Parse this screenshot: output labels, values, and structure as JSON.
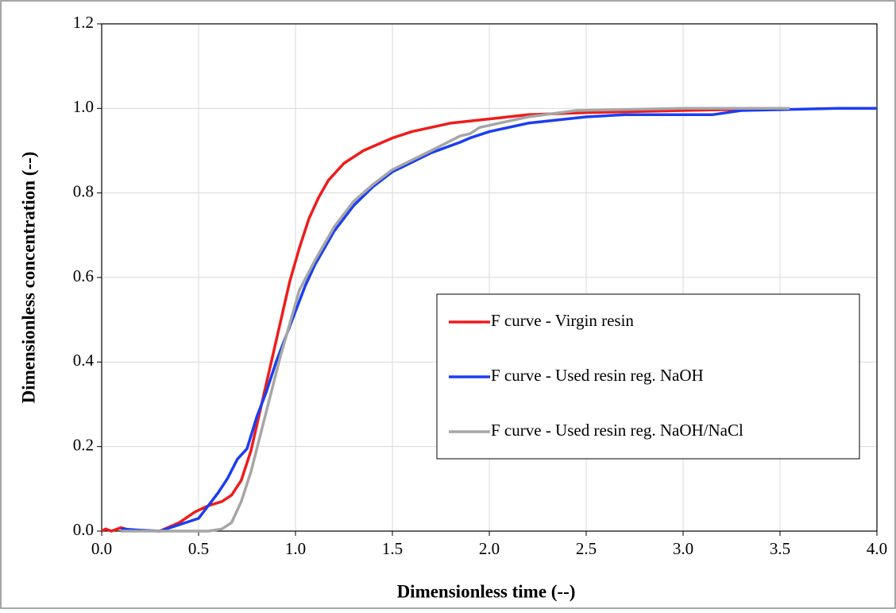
{
  "chart_data": {
    "type": "line",
    "xlabel": "Dimensionless time (--)",
    "ylabel": "Dimensionless concentration (--)",
    "xlim": [
      0,
      4
    ],
    "ylim": [
      0,
      1.2
    ],
    "xticks": [
      {
        "value": 0,
        "label": "0.0"
      },
      0.5,
      {
        "value": 1,
        "label": "1.0"
      },
      1.5,
      {
        "value": 2,
        "label": "2.0"
      },
      2.5,
      {
        "value": 3,
        "label": "3.0"
      },
      3.5,
      {
        "value": 4,
        "label": "4.0"
      }
    ],
    "yticks": [
      {
        "value": 0,
        "label": "0.0"
      },
      0.2,
      0.4,
      0.6,
      0.8,
      {
        "value": 1,
        "label": "1.0"
      },
      1.2
    ],
    "grid": true,
    "legend": "right",
    "series": [
      {
        "name": "F curve - Virgin resin",
        "color": "#ee1c1c",
        "x": [
          0,
          0.02,
          0.05,
          0.1,
          0.15,
          0.3,
          0.4,
          0.48,
          0.55,
          0.62,
          0.67,
          0.72,
          0.77,
          0.82,
          0.87,
          0.92,
          0.97,
          1.02,
          1.07,
          1.12,
          1.17,
          1.25,
          1.35,
          1.45,
          1.5,
          1.6,
          1.8,
          2.0,
          2.2,
          2.5,
          3.0,
          3.55
        ],
        "values": [
          0,
          0.005,
          0,
          0.008,
          0.002,
          0,
          0.02,
          0.045,
          0.06,
          0.07,
          0.085,
          0.12,
          0.19,
          0.29,
          0.39,
          0.49,
          0.59,
          0.67,
          0.74,
          0.79,
          0.83,
          0.87,
          0.9,
          0.92,
          0.93,
          0.945,
          0.965,
          0.975,
          0.985,
          0.99,
          0.995,
          1.0
        ]
      },
      {
        "name": "F curve - Used resin reg. NaOH",
        "color": "#1c3ef0",
        "x": [
          0.1,
          0.2,
          0.3,
          0.4,
          0.5,
          0.6,
          0.65,
          0.7,
          0.75,
          0.8,
          0.85,
          0.9,
          0.95,
          1.0,
          1.05,
          1.1,
          1.2,
          1.3,
          1.4,
          1.5,
          1.7,
          1.85,
          1.9,
          2.0,
          2.2,
          2.5,
          2.7,
          3.15,
          3.3,
          3.8,
          4.0
        ],
        "values": [
          0.005,
          0.002,
          0,
          0.015,
          0.03,
          0.09,
          0.125,
          0.17,
          0.195,
          0.27,
          0.33,
          0.4,
          0.46,
          0.52,
          0.58,
          0.63,
          0.71,
          0.77,
          0.815,
          0.85,
          0.895,
          0.92,
          0.93,
          0.945,
          0.965,
          0.98,
          0.985,
          0.985,
          0.995,
          1.0,
          1.0
        ]
      },
      {
        "name": "F curve - Used resin reg. NaOH/NaCl",
        "color": "#a6a6a6",
        "x": [
          0.1,
          0.55,
          0.62,
          0.67,
          0.72,
          0.77,
          0.82,
          0.87,
          0.92,
          0.97,
          1.02,
          1.1,
          1.2,
          1.3,
          1.4,
          1.5,
          1.7,
          1.85,
          1.9,
          1.95,
          2.2,
          2.45,
          3.0,
          3.55
        ],
        "values": [
          0,
          0,
          0.005,
          0.02,
          0.07,
          0.14,
          0.23,
          0.32,
          0.41,
          0.49,
          0.57,
          0.64,
          0.72,
          0.78,
          0.82,
          0.855,
          0.9,
          0.935,
          0.94,
          0.955,
          0.98,
          0.995,
          1.0,
          1.0
        ]
      }
    ]
  }
}
